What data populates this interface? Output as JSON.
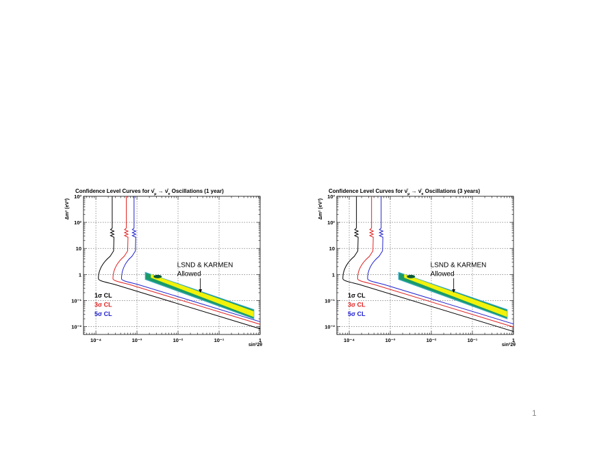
{
  "slide": {
    "page_number": "1"
  },
  "chart_data": [
    {
      "type": "line",
      "title_prefix": "Confidence Level Curves for ",
      "title_nu_mu": "ν̄",
      "title_mu_sub": "μ",
      "title_arrow": " → ",
      "title_nu_e": "ν̄",
      "title_e_sub": "e",
      "title_suffix": " Oscillations (1 year)",
      "xlabel": "sin²2θ",
      "ylabel": "Δm² (eV²)",
      "x_scale": "log",
      "y_scale": "log",
      "xlim": [
        5e-05,
        1
      ],
      "ylim": [
        0.005,
        1000
      ],
      "x_tick_values": [
        0.0001,
        0.001,
        0.01,
        0.1,
        1
      ],
      "x_tick_labels": [
        "10⁻⁴",
        "10⁻³",
        "10⁻²",
        "10⁻¹",
        "1"
      ],
      "y_tick_values": [
        0.01,
        0.1,
        1,
        10,
        100,
        1000
      ],
      "y_tick_labels": [
        "10⁻²",
        "10⁻¹",
        "1",
        "10",
        "10²",
        "10³"
      ],
      "grid": true,
      "legend": {
        "position": "left",
        "entries": [
          "1σ CL",
          "3σ CL",
          "5σ CL"
        ]
      },
      "annotation": {
        "line1": "LSND & KARMEN",
        "line2": "Allowed",
        "arrow_to": [
          0.035,
          0.2
        ]
      },
      "series": [
        {
          "name": "1σ CL",
          "color": "#000000",
          "asymptote_x": 0.00025,
          "min_x": 0.000115,
          "min_y": 0.7
        },
        {
          "name": "3σ CL",
          "color": "#e02020",
          "asymptote_x": 0.00055,
          "min_x": 0.00026,
          "min_y": 0.7
        },
        {
          "name": "5σ CL",
          "color": "#2020d0",
          "asymptote_x": 0.00085,
          "min_x": 0.00042,
          "min_y": 0.7
        }
      ],
      "allowed_region": {
        "x": [
          0.0016,
          0.7
        ],
        "y_upper": [
          1.2,
          0.045
        ],
        "y_lower": [
          0.65,
          0.02
        ],
        "colors": [
          "#1a9a6a",
          "#f2f20a"
        ]
      }
    },
    {
      "type": "line",
      "title_prefix": "Confidence Level Curves for ",
      "title_nu_mu": "ν̄",
      "title_mu_sub": "μ",
      "title_arrow": " → ",
      "title_nu_e": "ν̄",
      "title_e_sub": "e",
      "title_suffix": " Oscillations (3 years)",
      "xlabel": "sin²2θ",
      "ylabel": "Δm² (eV²)",
      "x_scale": "log",
      "y_scale": "log",
      "xlim": [
        5e-05,
        1
      ],
      "ylim": [
        0.005,
        1000
      ],
      "x_tick_values": [
        0.0001,
        0.001,
        0.01,
        0.1,
        1
      ],
      "x_tick_labels": [
        "10⁻⁴",
        "10⁻³",
        "10⁻²",
        "10⁻¹",
        "1"
      ],
      "y_tick_values": [
        0.01,
        0.1,
        1,
        10,
        100,
        1000
      ],
      "y_tick_labels": [
        "10⁻²",
        "10⁻¹",
        "1",
        "10",
        "10²",
        "10³"
      ],
      "grid": true,
      "legend": {
        "position": "left",
        "entries": [
          "1σ CL",
          "3σ CL",
          "5σ CL"
        ]
      },
      "annotation": {
        "line1": "LSND & KARMEN",
        "line2": "Allowed",
        "arrow_to": [
          0.035,
          0.2
        ]
      },
      "series": [
        {
          "name": "1σ CL",
          "color": "#000000",
          "asymptote_x": 0.00015,
          "min_x": 7e-05,
          "min_y": 0.7
        },
        {
          "name": "3σ CL",
          "color": "#e02020",
          "asymptote_x": 0.00035,
          "min_x": 0.00016,
          "min_y": 0.7
        },
        {
          "name": "5σ CL",
          "color": "#2020d0",
          "asymptote_x": 0.0006,
          "min_x": 0.00028,
          "min_y": 0.7
        }
      ],
      "allowed_region": {
        "x": [
          0.0016,
          0.7
        ],
        "y_upper": [
          1.2,
          0.045
        ],
        "y_lower": [
          0.65,
          0.02
        ],
        "colors": [
          "#1a9a6a",
          "#f2f20a"
        ]
      }
    }
  ]
}
